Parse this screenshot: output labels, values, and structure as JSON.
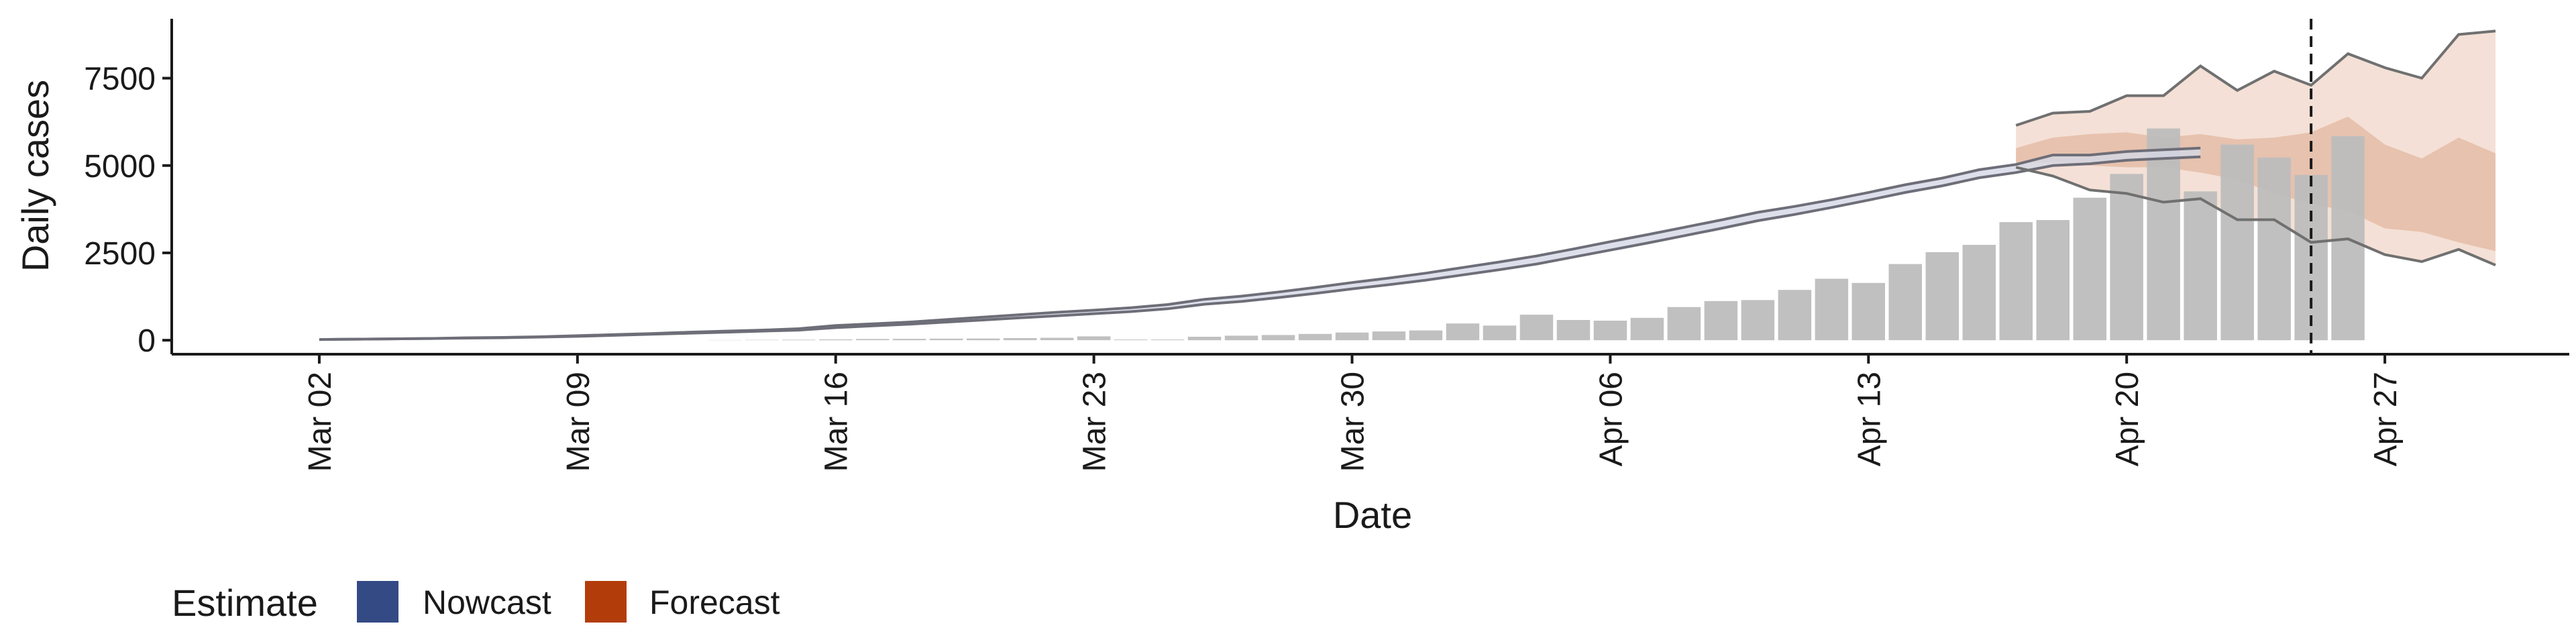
{
  "chart_data": {
    "type": "bar",
    "xlabel": "Date",
    "ylabel": "Daily cases",
    "ylim": [
      -400,
      9200
    ],
    "yticks": [
      0,
      2500,
      5000,
      7500
    ],
    "ytick_labels": [
      "0",
      "2500",
      "5000",
      "7500"
    ],
    "xticks": [
      "2020-03-02",
      "2020-03-09",
      "2020-03-16",
      "2020-03-23",
      "2020-03-30",
      "2020-04-06",
      "2020-04-13",
      "2020-04-20",
      "2020-04-27"
    ],
    "xtick_labels": [
      "Mar 02",
      "Mar 09",
      "Mar 16",
      "Mar 23",
      "Mar 30",
      "Apr 06",
      "Apr 13",
      "Apr 20",
      "Apr 27"
    ],
    "xlim": [
      "2020-02-27",
      "2020-05-02"
    ],
    "grid": false,
    "forecast_start_date": "2020-04-25",
    "bars": {
      "start_date": "2020-03-13",
      "values": [
        5,
        10,
        15,
        25,
        35,
        40,
        45,
        50,
        60,
        70,
        110,
        20,
        20,
        100,
        130,
        150,
        180,
        220,
        250,
        280,
        480,
        420,
        730,
        580,
        560,
        640,
        950,
        1120,
        1150,
        1440,
        1760,
        1640,
        2180,
        2520,
        2730,
        3380,
        3440,
        4080,
        4760,
        6060,
        4260,
        5600,
        5230,
        4730,
        5840
      ]
    },
    "nowcast": {
      "start_date": "2020-03-02",
      "upper": [
        20,
        30,
        40,
        50,
        70,
        80,
        100,
        130,
        160,
        190,
        230,
        260,
        290,
        330,
        420,
        470,
        520,
        590,
        660,
        730,
        800,
        860,
        930,
        1020,
        1170,
        1260,
        1380,
        1510,
        1650,
        1780,
        1920,
        2080,
        2240,
        2410,
        2610,
        2820,
        3020,
        3230,
        3440,
        3660,
        3830,
        4020,
        4230,
        4450,
        4640,
        4880,
        5030,
        5300,
        5300,
        5400,
        5450,
        5500
      ],
      "lower": [
        20,
        30,
        40,
        50,
        60,
        70,
        90,
        110,
        140,
        170,
        200,
        230,
        260,
        290,
        360,
        410,
        460,
        520,
        580,
        640,
        700,
        760,
        820,
        900,
        1030,
        1110,
        1220,
        1340,
        1470,
        1590,
        1720,
        1870,
        2020,
        2180,
        2380,
        2580,
        2780,
        2990,
        3200,
        3420,
        3600,
        3800,
        4010,
        4230,
        4420,
        4650,
        4800,
        5000,
        5050,
        5150,
        5200,
        5250
      ]
    },
    "forecast": {
      "start_date": "2020-04-17",
      "outer_upper": [
        6150,
        6500,
        6550,
        7000,
        7000,
        7850,
        7150,
        7700,
        7300,
        8200,
        7800,
        7500,
        8750,
        8850
      ],
      "outer_lower": [
        4950,
        4700,
        4300,
        4200,
        3950,
        4050,
        3450,
        3450,
        2800,
        2900,
        2450,
        2250,
        2600,
        2150
      ],
      "inner_upper": [
        5500,
        5800,
        5900,
        5950,
        5800,
        5900,
        5750,
        5800,
        5950,
        6400,
        5600,
        5200,
        5800,
        5350
      ],
      "inner_lower": [
        5050,
        5100,
        5000,
        4950,
        4950,
        4800,
        4600,
        4200,
        3900,
        3700,
        3200,
        3100,
        2800,
        2550
      ]
    },
    "legend": {
      "title": "Estimate",
      "position": "bottom-left",
      "items": [
        {
          "label": "Nowcast",
          "color": "#344a85"
        },
        {
          "label": "Forecast",
          "color": "#b33c0b"
        }
      ]
    },
    "colors": {
      "bars": "#bdbdbd",
      "nowcast_band": "#d4d8e6",
      "nowcast_line": "#6e6e78",
      "forecast_outer": "#f4e0d6",
      "forecast_inner": "#e7c2ae",
      "forecast_line": "#707070",
      "vline": "#1a1a1a",
      "axis": "#1a1a1a"
    }
  }
}
